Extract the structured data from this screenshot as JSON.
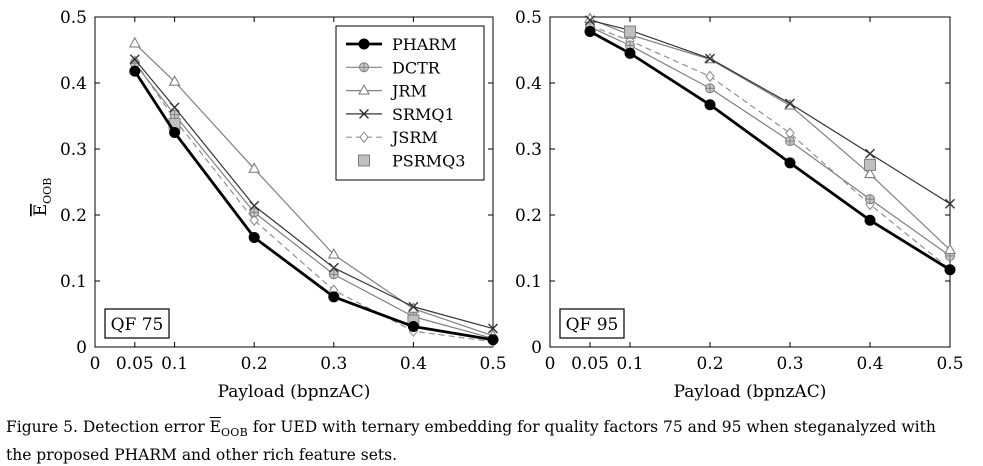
{
  "chart_data": [
    {
      "type": "line",
      "annotation": "QF 75",
      "xlabel": "Payload (bpnzAC)",
      "ylabel": "E_OOB",
      "xlim": [
        0,
        0.5
      ],
      "ylim": [
        0,
        0.5
      ],
      "xticks": [
        "0",
        "0.05",
        "0.1",
        "0.2",
        "0.3",
        "0.4",
        "0.5"
      ],
      "yticks": [
        "0",
        "0.1",
        "0.2",
        "0.3",
        "0.4",
        "0.5"
      ],
      "grid": false,
      "legend": "top-right",
      "x": [
        0.05,
        0.1,
        0.2,
        0.3,
        0.4,
        0.5
      ],
      "series": [
        {
          "name": "PHARM",
          "values": [
            0.418,
            0.325,
            0.166,
            0.076,
            0.031,
            0.011
          ]
        },
        {
          "name": "DCTR",
          "values": [
            0.43,
            0.352,
            0.204,
            0.11,
            0.046,
            0.013
          ]
        },
        {
          "name": "JRM",
          "values": [
            0.46,
            0.402,
            0.27,
            0.14,
            0.058,
            0.017
          ]
        },
        {
          "name": "SRMQ1",
          "values": [
            0.436,
            0.363,
            0.214,
            0.12,
            0.061,
            0.028
          ]
        },
        {
          "name": "JSRM",
          "values": [
            0.433,
            0.345,
            0.192,
            0.086,
            0.024,
            0.008
          ]
        },
        {
          "name": "PSRMQ3",
          "values": [
            null,
            0.338,
            null,
            null,
            0.04,
            null
          ]
        }
      ]
    },
    {
      "type": "line",
      "annotation": "QF 95",
      "xlabel": "Payload (bpnzAC)",
      "xlim": [
        0,
        0.5
      ],
      "ylim": [
        0,
        0.5
      ],
      "xticks": [
        "0",
        "0.05",
        "0.1",
        "0.2",
        "0.3",
        "0.4",
        "0.5"
      ],
      "yticks": [
        "0",
        "0.1",
        "0.2",
        "0.3",
        "0.4",
        "0.5"
      ],
      "grid": false,
      "x": [
        0.05,
        0.1,
        0.2,
        0.3,
        0.4,
        0.5
      ],
      "series": [
        {
          "name": "PHARM",
          "values": [
            0.478,
            0.445,
            0.367,
            0.279,
            0.192,
            0.117
          ]
        },
        {
          "name": "DCTR",
          "values": [
            0.485,
            0.457,
            0.392,
            0.312,
            0.224,
            0.138
          ]
        },
        {
          "name": "JRM",
          "values": [
            0.497,
            0.473,
            0.436,
            0.366,
            0.262,
            0.147
          ]
        },
        {
          "name": "SRMQ1",
          "values": [
            0.495,
            0.48,
            0.437,
            0.369,
            0.293,
            0.217
          ]
        },
        {
          "name": "JSRM",
          "values": [
            0.487,
            0.464,
            0.41,
            0.324,
            0.216,
            0.118
          ]
        },
        {
          "name": "PSRMQ3",
          "values": [
            null,
            0.478,
            null,
            null,
            0.276,
            null
          ]
        }
      ]
    }
  ],
  "styles": {
    "PHARM": {
      "color": "#000000",
      "width": 2.8,
      "dash": "",
      "marker": "dot"
    },
    "DCTR": {
      "color": "#808080",
      "width": 1.2,
      "dash": "",
      "marker": "oplus"
    },
    "JRM": {
      "color": "#808080",
      "width": 1.2,
      "dash": "",
      "marker": "triangle"
    },
    "SRMQ1": {
      "color": "#333333",
      "width": 1.2,
      "dash": "",
      "marker": "x"
    },
    "JSRM": {
      "color": "#909090",
      "width": 1.2,
      "dash": "6,4",
      "marker": "diamond"
    },
    "PSRMQ3": {
      "color": "#808080",
      "width": 1.2,
      "dash": "",
      "marker": "square"
    }
  },
  "caption": {
    "prefix": "Figure 5. Detection error ",
    "symbol": "E",
    "subscript": "OOB",
    "suffix": " for UED with ternary embedding for quality factors 75 and 95 when steganalyzed with",
    "line2": "the proposed PHARM and other rich feature sets."
  }
}
